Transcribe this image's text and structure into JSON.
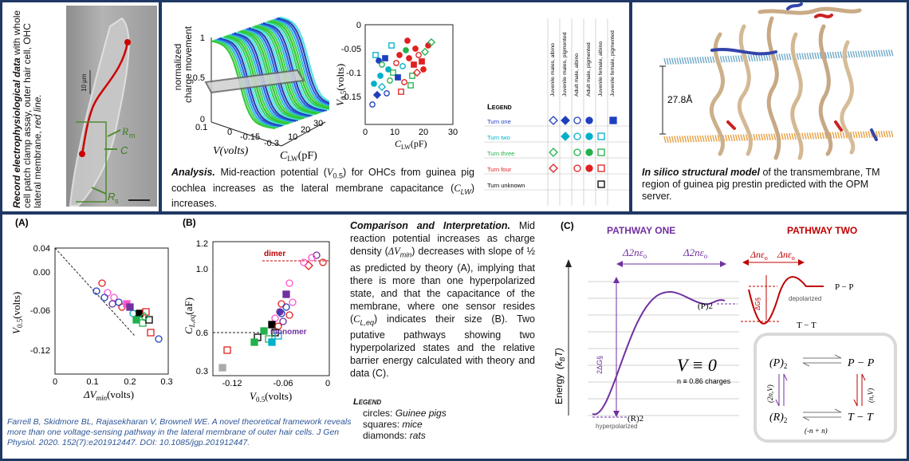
{
  "colors": {
    "navy": "#1f3864",
    "purple": "#7030a0",
    "red": "#c00000",
    "blue": "#2e5597"
  },
  "panel1": {
    "caption_bold": "Record electrophysiological data",
    "caption_rest": "with whole cell patch clamp assay, outer hair cell, OHC lateral membrane,",
    "caption_red": "red line.",
    "scalebar": "10 µm",
    "labels": {
      "rm": "R",
      "rm_sub": "m",
      "c": "C",
      "rs": "R",
      "rs_sub": "s"
    }
  },
  "panel2": {
    "plot3d": {
      "ylabel_line1": "normalized",
      "ylabel_line2": "charge movement",
      "z_ticks": [
        "1",
        "0.5",
        "0"
      ],
      "v_ticks": [
        "0.1",
        "0",
        "-0.15",
        "-0.3"
      ],
      "c_ticks": [
        "10",
        "20",
        "30"
      ],
      "xlabel": "V(volts)",
      "clabel": "C",
      "clabel_sub": "LW",
      "clabel_unit": "(pF)"
    },
    "scatter": {
      "y_ticks": [
        "0",
        "-0.05",
        "-0.1",
        "-0.15"
      ],
      "x_ticks": [
        "0",
        "10",
        "20",
        "30"
      ],
      "ylabel": "V",
      "ylabel_sub": "0.5",
      "ylabel_unit": "(volts)",
      "xlabel": "C",
      "xlabel_sub": "LW",
      "xlabel_unit": "(pF)"
    },
    "legend": {
      "title": "Legend",
      "columns": [
        "Juvenile males, albino",
        "Juvenile males, pigmented",
        "Adult male, albino",
        "Adult male, pigmented",
        "Juvenile female, albino",
        "Juvenile female, pigmented"
      ],
      "rows": [
        {
          "label": "Turn one",
          "color": "#1f3fbf"
        },
        {
          "label": "Turn two",
          "color": "#00b0c8"
        },
        {
          "label": "Turn three",
          "color": "#22b14c"
        },
        {
          "label": "Turn four",
          "color": "#e02020"
        },
        {
          "label": "Turn unknown",
          "color": "#000000"
        }
      ]
    },
    "caption_bold": "Analysis.",
    "caption_a": "Mid-reaction potential (",
    "caption_v": "V",
    "caption_vsub": "0.5",
    "caption_b": ") for OHCs from guinea pig cochlea increases as the lateral membrane capacitance (",
    "caption_c": "C",
    "caption_csub": "LW",
    "caption_c2": ") increases."
  },
  "panel3": {
    "thickness": "27.8Å",
    "caption_bold": "In silico structural model",
    "caption_rest": "of the transmembrane, TM region of guinea pig prestin predicted with the OPM server."
  },
  "panelA": {
    "label": "(A)",
    "y_ticks": [
      "0.04",
      "0.00",
      "-0.06",
      "-0.12"
    ],
    "x_ticks": [
      "0",
      "0.1",
      "0.2",
      "0.3"
    ],
    "ylabel": "V",
    "ylabel_sub": "0.5",
    "ylabel_unit": "(volts)",
    "xlabel": "ΔV",
    "xlabel_sub": "min",
    "xlabel_unit": "(volts)"
  },
  "panelB": {
    "label": "(B)",
    "y_ticks": [
      "1.2",
      "1.0",
      "0.6",
      "0.3"
    ],
    "x_ticks": [
      "-0.12",
      "-0.06",
      "0"
    ],
    "ylabel": "C",
    "ylabel_sub": "L,eq",
    "ylabel_unit": "(aF)",
    "xlabel": "V",
    "xlabel_sub": "0.5",
    "xlabel_unit": "(volts)",
    "dimer": "dimer",
    "monomer": "monomer"
  },
  "comparison": {
    "bold": "Comparison and Interpretation.",
    "t1": "Mid reaction potential increases as charge density (",
    "t1m": "ΔV",
    "t1s": "min",
    "t2": ") decreases with slope of ½ as predicted by theory (A), implying that there is more than one hyperpolarized state, and that the capacitance of the membrane, where one sensor resides (",
    "t2m": "C",
    "t2s": "L,eq",
    "t3": ") indicates their size (B). Two putative pathways showing two hyperpolarized states and the relative barrier energy calculated with theory and data (C)."
  },
  "legend2": {
    "title": "Legend",
    "circles": "circles:",
    "circles_v": "Guinee pigs",
    "squares": "squares:",
    "squares_v": "mice",
    "diamonds": "diamonds:",
    "diamonds_v": "rats"
  },
  "reference": "Farrell B, Skidmore BL, Rajasekharan V, Brownell WE. A novel theoretical framework reveals more than one voltage-sensing pathway in the lateral membrane of outer hair cells. J Gen Physiol. 2020. 152(7):e201912447. DOI: 10.1085/jgp.201912447.",
  "panelC": {
    "label": "(C)",
    "pathway_one": "PATHWAY ONE",
    "pathway_two": "PATHWAY TWO",
    "energy_axis": "Energy",
    "energy_unit": "(k",
    "energy_unit_sub": "B",
    "energy_unit_end": "T)",
    "delta1": "Δ2nε",
    "delta1_sub": "o",
    "delta2": "Δ2nε",
    "delta2_sub": "o",
    "barrier1": "2ΔG§",
    "p2_state": "(P)2",
    "r2_state": "(R)2",
    "hyperpolarized": "hyperpolarized",
    "v_equiv": "V ≡ 0",
    "n_charges": "n ≡ 0.86 charges",
    "d3": "Δnε",
    "d3_sub": "o",
    "d4": "Δnε",
    "d4_sub": "o",
    "barrier2": "ΔG§",
    "depolarized": "depolarized",
    "pp": "P − P",
    "tt": "T − T",
    "scheme": {
      "tl": "(P)",
      "tl_sub": "2",
      "tr": "P − P",
      "bl": "(R)",
      "bl_sub": "2",
      "br": "T − T",
      "left_rate": "(2n,V)",
      "right_rate": "(n,V)",
      "bottom_rate": "(-n + n)"
    }
  }
}
